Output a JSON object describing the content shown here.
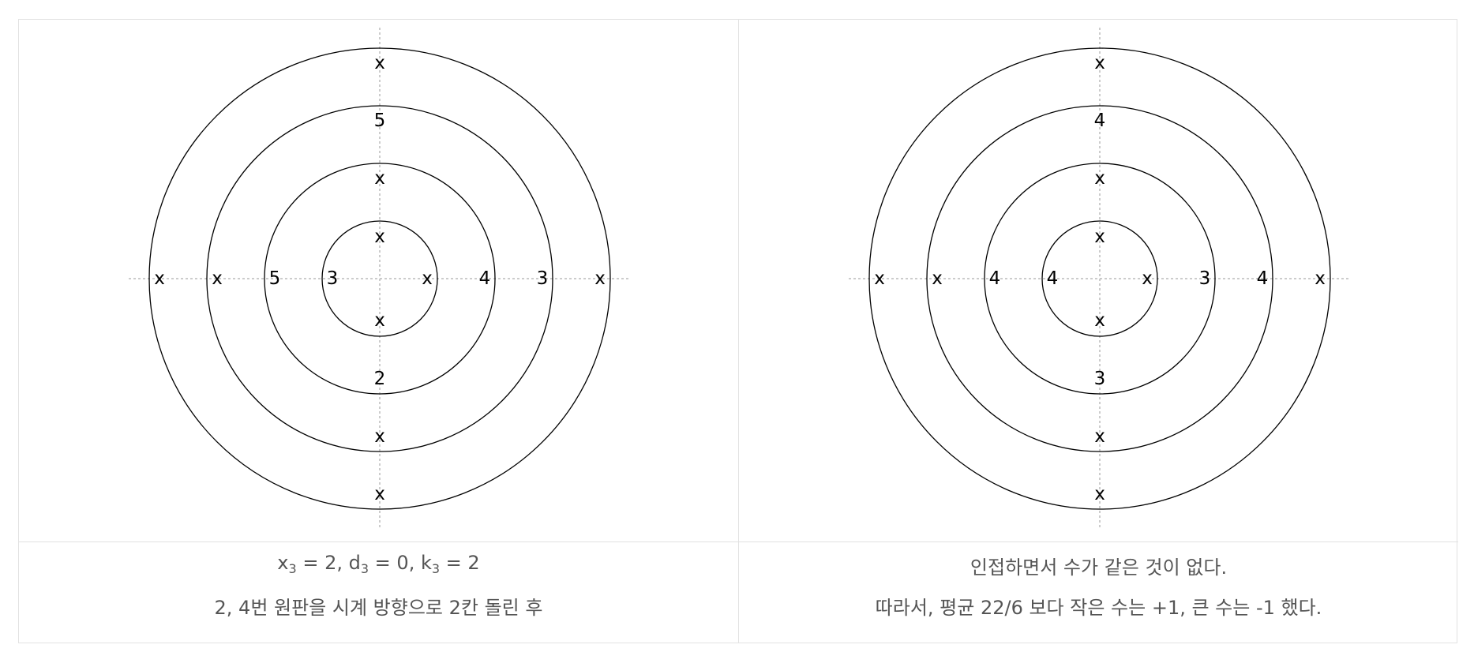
{
  "panels": [
    {
      "caption": {
        "formula": [
          {
            "base": "x",
            "sub": "3",
            "value": "2",
            "sep": ", "
          },
          {
            "base": "d",
            "sub": "3",
            "value": "0",
            "sep": ", "
          },
          {
            "base": "k",
            "sub": "3",
            "value": "2",
            "sep": ""
          }
        ],
        "line2": "2, 4번 원판을 시계 방향으로 2칸 돌린 후"
      },
      "rings": [
        {
          "ring": 1,
          "top": "x",
          "bottom": "x",
          "left": "3",
          "right": "x"
        },
        {
          "ring": 2,
          "top": "x",
          "bottom": "2",
          "left": "5",
          "right": "4"
        },
        {
          "ring": 3,
          "top": "5",
          "bottom": "x",
          "left": "x",
          "right": "3"
        },
        {
          "ring": 4,
          "top": "x",
          "bottom": "x",
          "left": "x",
          "right": "x"
        }
      ]
    },
    {
      "caption": {
        "line1": "인접하면서 수가 같은 것이 없다.",
        "line2": "따라서, 평균 22/6 보다 작은 수는 +1, 큰 수는 -1 했다."
      },
      "rings": [
        {
          "ring": 1,
          "top": "x",
          "bottom": "x",
          "left": "4",
          "right": "x"
        },
        {
          "ring": 2,
          "top": "x",
          "bottom": "3",
          "left": "4",
          "right": "3"
        },
        {
          "ring": 3,
          "top": "4",
          "bottom": "x",
          "left": "x",
          "right": "4"
        },
        {
          "ring": 4,
          "top": "x",
          "bottom": "x",
          "left": "x",
          "right": "x"
        }
      ]
    }
  ]
}
